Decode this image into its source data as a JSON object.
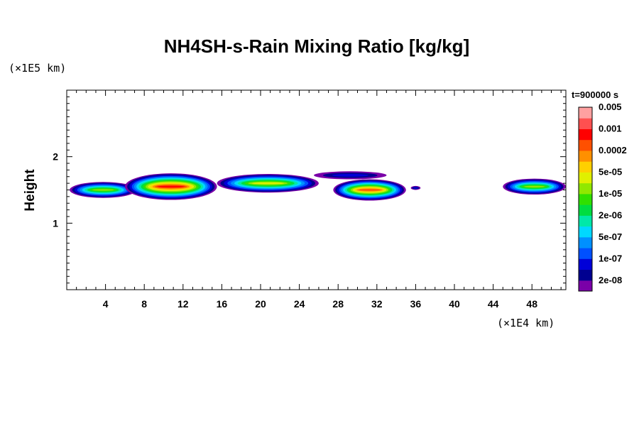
{
  "chart_data": {
    "type": "heatmap",
    "title": "NH4SH-s-Rain Mixing Ratio [kg/kg]",
    "ylabel": "Height",
    "xlabel": "",
    "x_unit": "(×1E4 km)",
    "y_unit": "(×1E5 km)",
    "time_label": "t=900000 s",
    "xlim": [
      0,
      51.5
    ],
    "ylim": [
      0,
      3
    ],
    "x_ticks": [
      4,
      8,
      12,
      16,
      20,
      24,
      28,
      32,
      36,
      40,
      44,
      48
    ],
    "y_ticks": [
      1,
      2
    ],
    "colorbar": {
      "colors": [
        "#7a00a8",
        "#000090",
        "#0000d8",
        "#0050ff",
        "#0090ff",
        "#00d8ff",
        "#00e8a8",
        "#00dd40",
        "#30e000",
        "#90e800",
        "#e0f000",
        "#ffd000",
        "#ff9000",
        "#ff5000",
        "#ff0000",
        "#ff5050",
        "#ffa0a0"
      ],
      "labels": [
        "2e-08",
        "1e-07",
        "5e-07",
        "2e-06",
        "1e-05",
        "5e-05",
        "0.0002",
        "0.001",
        "0.005"
      ]
    },
    "cloud_layers": [
      {
        "x_start": 0.3,
        "x_end": 7.2,
        "y_center": 1.5,
        "half_thickness": 0.12,
        "peak_level": 9
      },
      {
        "x_start": 6.0,
        "x_end": 15.5,
        "y_center": 1.55,
        "half_thickness": 0.2,
        "peak_level": 14
      },
      {
        "x_start": 15.5,
        "x_end": 26.0,
        "y_center": 1.6,
        "half_thickness": 0.14,
        "peak_level": 10
      },
      {
        "x_start": 25.5,
        "x_end": 33.0,
        "y_center": 1.72,
        "half_thickness": 0.06,
        "peak_level": 2
      },
      {
        "x_start": 27.5,
        "x_end": 35.0,
        "y_center": 1.5,
        "half_thickness": 0.16,
        "peak_level": 13
      },
      {
        "x_start": 35.5,
        "x_end": 36.5,
        "y_center": 1.53,
        "half_thickness": 0.03,
        "peak_level": 2
      },
      {
        "x_start": 45.0,
        "x_end": 51.5,
        "y_center": 1.55,
        "half_thickness": 0.12,
        "peak_level": 9
      }
    ]
  }
}
